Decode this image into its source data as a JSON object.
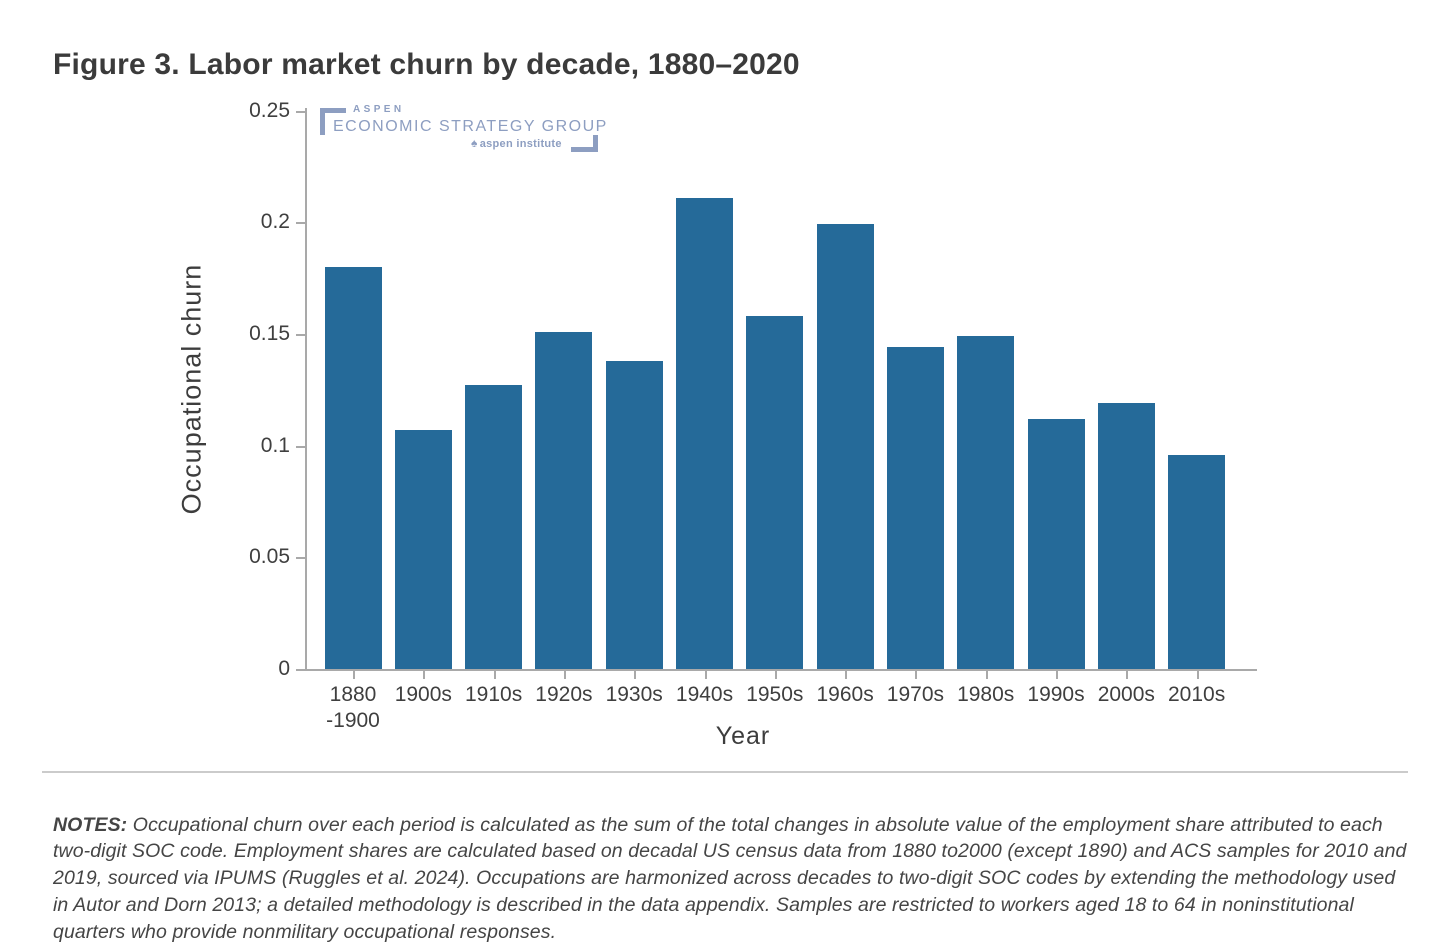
{
  "page_title": "Figure 3. Labor market churn by decade, 1880–2020",
  "logo": {
    "line1": "ASPEN",
    "line2": "ECONOMIC STRATEGY GROUP",
    "line3": "aspen institute",
    "color": "#8d9ec1"
  },
  "chart_data": {
    "type": "bar",
    "title": "Figure 3. Labor market churn by decade, 1880–2020",
    "categories": [
      "1880\n-1900",
      "1900s",
      "1910s",
      "1920s",
      "1930s",
      "1940s",
      "1950s",
      "1960s",
      "1970s",
      "1980s",
      "1990s",
      "2000s",
      "2010s"
    ],
    "values": [
      0.18,
      0.107,
      0.127,
      0.151,
      0.138,
      0.211,
      0.158,
      0.199,
      0.144,
      0.149,
      0.112,
      0.119,
      0.096
    ],
    "xlabel": "Year",
    "ylabel": "Occupational churn",
    "ylim": [
      0,
      0.25
    ],
    "yticks": [
      0,
      0.05,
      0.1,
      0.15,
      0.2,
      0.25
    ],
    "grid": false,
    "legend": "none",
    "bar_color": "#256a99",
    "axis_color": "#a9a9a9"
  },
  "notes": {
    "label": "NOTES:",
    "text": " Occupational churn over each period is calculated as the sum of the total changes in absolute value of the employment share attributed to each two-digit SOC code. Employment shares are calculated based on decadal US census data from 1880 to2000 (except 1890) and ACS samples for 2010 and 2019, sourced via IPUMS (Ruggles et al. 2024). Occupations are harmonized across decades to two-digit SOC codes by extending the methodology used in Autor and Dorn 2013; a detailed methodology is described in the data appendix. Samples are restricted to workers aged 18 to 64 in noninstitutional quarters who provide nonmilitary occupational responses."
  }
}
